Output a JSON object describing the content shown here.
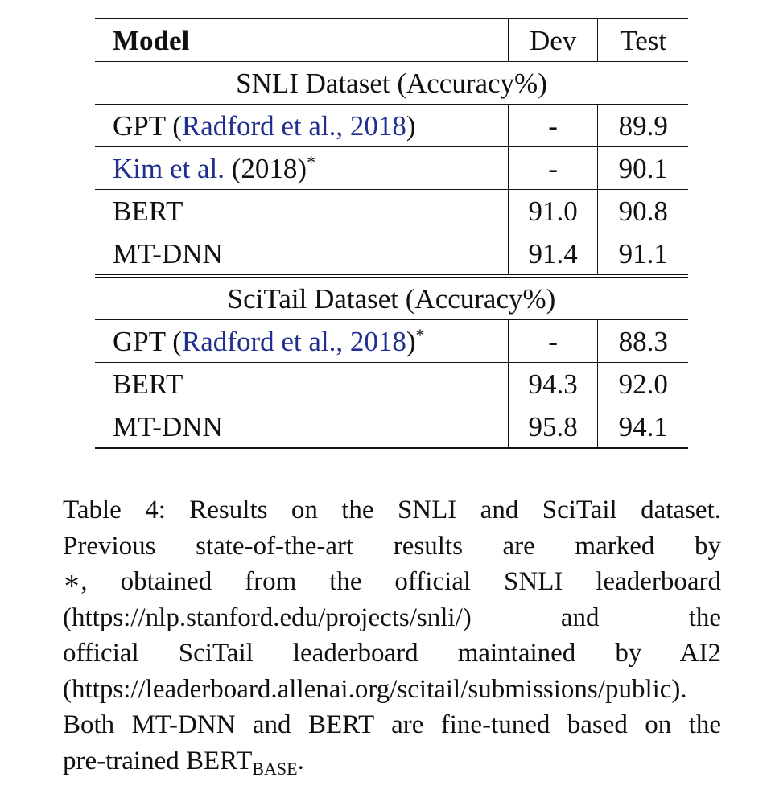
{
  "table": {
    "headers": {
      "model": "Model",
      "dev": "Dev",
      "test": "Test"
    },
    "snli": {
      "section_title": "SNLI Dataset (Accuracy%)",
      "rows": [
        {
          "model_prefix": "GPT (",
          "cite": "Radford et al., 2018",
          "model_suffix": ")",
          "marker": "",
          "dev": "-",
          "test": "89.9"
        },
        {
          "model_prefix": "",
          "cite": "Kim et al.",
          "model_suffix": " (2018)",
          "marker": "*",
          "dev": "-",
          "test": "90.1"
        },
        {
          "model_prefix": "BERT",
          "cite": "",
          "model_suffix": "",
          "marker": "",
          "dev": "91.0",
          "test": "90.8"
        },
        {
          "model_prefix": "MT-DNN",
          "cite": "",
          "model_suffix": "",
          "marker": "",
          "dev": "91.4",
          "test": "91.1"
        }
      ]
    },
    "scitail": {
      "section_title": "SciTail Dataset (Accuracy%)",
      "rows": [
        {
          "model_prefix": "GPT (",
          "cite": "Radford et al., 2018",
          "model_suffix": ")",
          "marker": "*",
          "dev": "-",
          "test": "88.3"
        },
        {
          "model_prefix": "BERT",
          "cite": "",
          "model_suffix": "",
          "marker": "",
          "dev": "94.3",
          "test": "92.0"
        },
        {
          "model_prefix": "MT-DNN",
          "cite": "",
          "model_suffix": "",
          "marker": "",
          "dev": "95.8",
          "test": "94.1"
        }
      ]
    }
  },
  "caption": {
    "lines": [
      "Table 4:  Results on the SNLI and SciTail dataset.",
      "Previous state-of-the-art results are marked by",
      "∗, obtained from the official SNLI leaderboard",
      "(https://nlp.stanford.edu/projects/snli/) and the",
      "official SciTail leaderboard maintained by AI2",
      "(https://leaderboard.allenai.org/scitail/submissions/public).",
      "Both MT-DNN and BERT are fine-tuned based on the"
    ],
    "last_prefix": "pre-trained BERT",
    "last_sub": "BASE",
    "last_suffix": "."
  }
}
